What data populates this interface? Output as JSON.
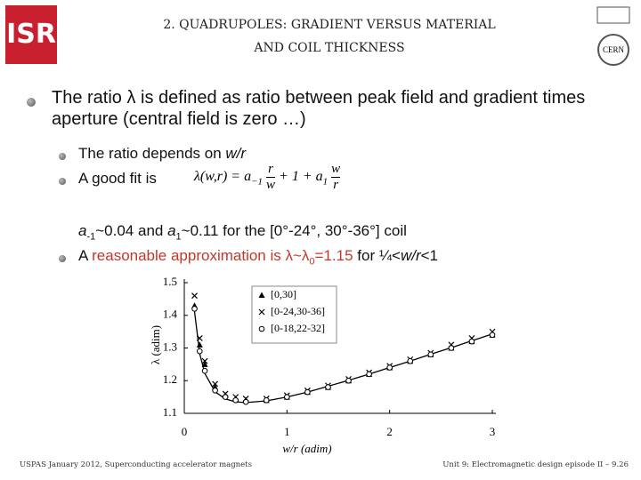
{
  "header": {
    "title_line1": "2. QUADRUPOLES: GRADIENT VERSUS MATERIAL",
    "title_line2": "AND COIL THICKNESS"
  },
  "bullet1": "The ratio λ is defined as ratio between peak field and gradient times aperture (central field is zero …)",
  "sub1": {
    "text": "The ratio depends on ",
    "italic": "w/r"
  },
  "sub2": {
    "text": "A good fit is",
    "formula": {
      "lhs": "λ(w,r) = a",
      "sub_m1": "−1",
      "frac1_num": "r",
      "frac1_den": "w",
      "mid": "+ 1 + a",
      "sub_1": "1",
      "frac2_num": "w",
      "frac2_den": "r"
    }
  },
  "sub2_cont": {
    "a": "a",
    "sub_m1": "-1",
    "p1": "~0.04  and ",
    "a1": "a",
    "sub_1": "1",
    "p2": "~0.11 for the [0°-24°, 30°-36°] coil"
  },
  "sub3": {
    "t1": "A ",
    "red": "reasonable approximation is λ~λ",
    "red_sub": "0",
    "red_end": "=1.15",
    "t2": " for  ¼<",
    "italic": "w/r",
    "t3": "<1"
  },
  "chart_data": {
    "type": "scatter",
    "xlabel": "w/r (adim)",
    "ylabel": "λ (adim)",
    "x": [
      0.1,
      0.15,
      0.2,
      0.3,
      0.4,
      0.5,
      0.6,
      0.8,
      1.0,
      1.2,
      1.4,
      1.6,
      1.8,
      2.0,
      2.2,
      2.4,
      2.6,
      2.8,
      3.0
    ],
    "series": [
      {
        "name": "[0,30]",
        "marker": "triangle",
        "color": "#000000",
        "values": [
          1.43,
          1.31,
          1.25,
          1.18,
          1.155,
          1.145,
          1.14,
          1.14,
          1.15,
          1.165,
          1.18,
          1.2,
          1.22,
          1.24,
          1.26,
          1.28,
          1.3,
          1.32,
          1.34
        ]
      },
      {
        "name": "[0-24,30-36]",
        "marker": "cross",
        "color": "#000000",
        "values": [
          1.46,
          1.33,
          1.26,
          1.19,
          1.16,
          1.15,
          1.145,
          1.145,
          1.155,
          1.17,
          1.185,
          1.205,
          1.225,
          1.245,
          1.265,
          1.285,
          1.31,
          1.33,
          1.35
        ]
      },
      {
        "name": "[0-18,22-32]",
        "marker": "circle",
        "color": "#000000",
        "values": [
          1.42,
          1.29,
          1.23,
          1.17,
          1.15,
          1.14,
          1.135,
          1.14,
          1.15,
          1.165,
          1.18,
          1.2,
          1.22,
          1.24,
          1.26,
          1.28,
          1.3,
          1.32,
          1.34
        ]
      }
    ],
    "fit": {
      "color": "#000000",
      "values": [
        1.411,
        1.283,
        1.222,
        1.166,
        1.144,
        1.135,
        1.133,
        1.138,
        1.15,
        1.165,
        1.183,
        1.201,
        1.22,
        1.24,
        1.26,
        1.281,
        1.301,
        1.322,
        1.343
      ]
    },
    "xlim": [
      0,
      3
    ],
    "ylim": [
      1.1,
      1.5
    ],
    "xticks": [
      0,
      1,
      2,
      3
    ],
    "yticks": [
      1.1,
      1.2,
      1.3,
      1.4,
      1.5
    ]
  },
  "footer": {
    "left": "USPAS January 2012,  Superconducting accelerator magnets",
    "right": "Unit 9: Electromagnetic design episode II – 9.26"
  }
}
